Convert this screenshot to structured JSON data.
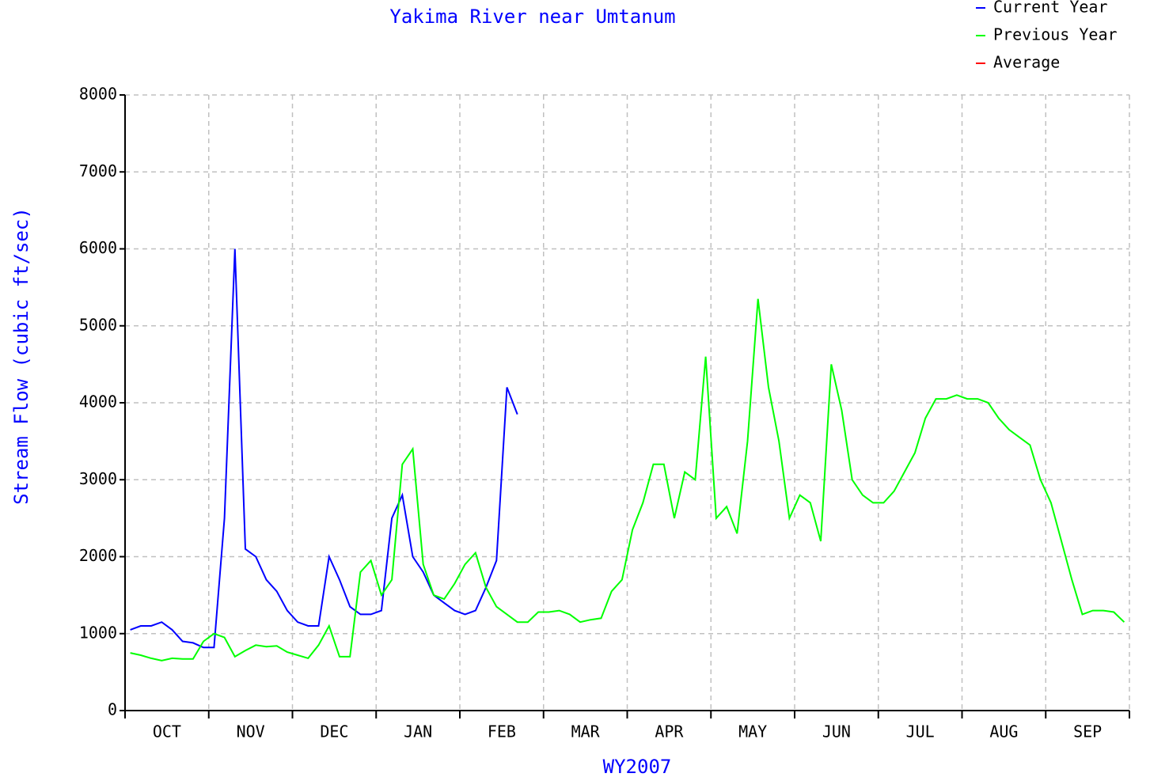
{
  "chart_data": {
    "type": "line",
    "title": "Yakima River near Umtanum",
    "ylabel": "Stream Flow (cubic ft/sec)",
    "xlabel": "WY2007",
    "categories": [
      null,
      null,
      null,
      null,
      "OCT",
      null,
      null,
      null,
      null,
      null,
      null,
      null,
      "NOV",
      null,
      null,
      null,
      null,
      null,
      null,
      null,
      "DEC",
      null,
      null,
      null,
      null,
      null,
      null,
      null,
      "JAN",
      null,
      null,
      null,
      null,
      null,
      null,
      null,
      "FEB",
      null,
      null,
      null,
      null,
      null,
      null,
      null,
      "MAR",
      null,
      null,
      null,
      null,
      null,
      null,
      null,
      "APR",
      null,
      null,
      null,
      null,
      null,
      null,
      null,
      "MAY",
      null,
      null,
      null,
      null,
      null,
      null,
      null,
      "JUN",
      null,
      null,
      null,
      null,
      null,
      null,
      null,
      "JUL",
      null,
      null,
      null,
      null,
      null,
      null,
      null,
      "AUG",
      null,
      null,
      null,
      null,
      null,
      null,
      null,
      "SEP",
      null,
      null,
      null
    ],
    "ylim": [
      0,
      8000
    ],
    "yticks": [
      0,
      1000,
      2000,
      3000,
      4000,
      5000,
      6000,
      7000,
      8000
    ],
    "grid": true,
    "legend": "top-right",
    "series": [
      {
        "name": "Current Year",
        "color": "#0000ff",
        "values": [
          1050,
          1100,
          1100,
          1150,
          1050,
          900,
          880,
          820,
          820,
          2500,
          6000,
          2100,
          2000,
          1700,
          1550,
          1300,
          1150,
          1100,
          1100,
          2000,
          1700,
          1350,
          1250,
          1250,
          1300,
          2500,
          2800,
          2000,
          1800,
          1500,
          1400,
          1300,
          1250,
          1300,
          1600,
          1950,
          4200,
          3850,
          null,
          null,
          null,
          null,
          null,
          null,
          null,
          null,
          null,
          null,
          null,
          null,
          null,
          null,
          null,
          null,
          null,
          null,
          null,
          null,
          null,
          null,
          null,
          null,
          null,
          null,
          null,
          null,
          null,
          null,
          null,
          null,
          null,
          null,
          null,
          null,
          null,
          null,
          null,
          null,
          null,
          null,
          null,
          null,
          null,
          null,
          null,
          null,
          null,
          null,
          null,
          null,
          null,
          null,
          null,
          null,
          null,
          null
        ]
      },
      {
        "name": "Previous Year",
        "color": "#00ff00",
        "values": [
          750,
          720,
          680,
          650,
          680,
          670,
          670,
          900,
          1000,
          950,
          700,
          780,
          850,
          830,
          840,
          760,
          720,
          680,
          850,
          1100,
          700,
          700,
          1800,
          1950,
          1500,
          1700,
          3200,
          3400,
          1900,
          1500,
          1450,
          1650,
          1900,
          2050,
          1600,
          1350,
          1250,
          1150,
          1150,
          1280,
          1280,
          1300,
          1250,
          1150,
          1180,
          1200,
          1550,
          1700,
          2350,
          2700,
          3200,
          3200,
          2500,
          3100,
          3000,
          4600,
          2500,
          2650,
          2300,
          3500,
          5350,
          4200,
          3500,
          2500,
          2800,
          2700,
          2200,
          4500,
          3900,
          3000,
          2800,
          2700,
          2700,
          2850,
          3100,
          3350,
          3800,
          4050,
          4050,
          4100,
          4050,
          4050,
          4000,
          3800,
          3650,
          3550,
          3450,
          3000,
          2700,
          2200,
          1700,
          1250,
          1300,
          1300,
          1280,
          1150
        ]
      },
      {
        "name": "Average",
        "color": "#ff0000",
        "values": [
          null,
          null,
          null,
          null,
          null,
          null,
          null,
          null,
          null,
          null,
          null,
          null,
          null,
          null,
          null,
          null,
          null,
          null,
          null,
          null,
          null,
          null,
          null,
          null,
          null,
          null,
          null,
          null,
          null,
          null,
          null,
          null,
          null,
          null,
          null,
          null,
          null,
          null,
          null,
          null,
          null,
          null,
          null,
          null,
          null,
          null,
          null,
          null,
          null,
          null,
          null,
          null,
          null,
          null,
          null,
          null,
          null,
          null,
          null,
          null,
          null,
          null,
          null,
          null,
          null,
          null,
          null,
          null,
          null,
          null,
          null,
          null,
          null,
          null,
          null,
          null,
          null,
          null,
          null,
          null,
          null,
          null,
          null,
          null,
          null,
          null,
          null,
          null,
          null,
          null,
          null,
          null,
          null,
          null,
          null,
          null
        ]
      }
    ]
  }
}
